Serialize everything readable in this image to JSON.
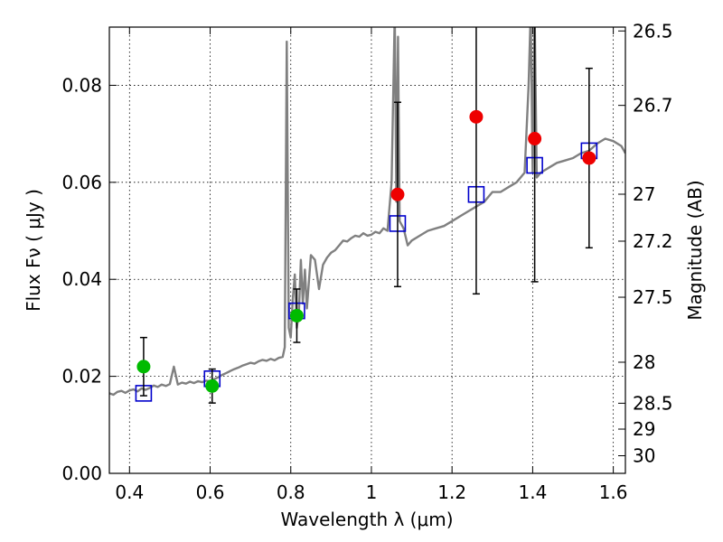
{
  "chart_data": {
    "type": "scatter",
    "xlabel": "Wavelength  λ (μm)",
    "ylabel": "Flux  Fν  ( μJy )",
    "ylabel_right": "Magnitude (AB)",
    "xlim": [
      0.35,
      1.63
    ],
    "ylim": [
      0.0,
      0.092
    ],
    "grid": true,
    "x_ticks": [
      {
        "value": 0.4,
        "label": "0.4"
      },
      {
        "value": 0.6,
        "label": "0.6"
      },
      {
        "value": 0.8,
        "label": "0.8"
      },
      {
        "value": 1.0,
        "label": "1"
      },
      {
        "value": 1.2,
        "label": "1.2"
      },
      {
        "value": 1.4,
        "label": "1.4"
      },
      {
        "value": 1.6,
        "label": "1.6"
      }
    ],
    "y_ticks": [
      {
        "value": 0.0,
        "label": "0.00"
      },
      {
        "value": 0.02,
        "label": "0.02"
      },
      {
        "value": 0.04,
        "label": "0.04"
      },
      {
        "value": 0.06,
        "label": "0.06"
      },
      {
        "value": 0.08,
        "label": "0.08"
      }
    ],
    "mag_ticks": [
      {
        "mag": 26.5,
        "label": "26.5"
      },
      {
        "mag": 26.7,
        "label": "26.7"
      },
      {
        "mag": 27.0,
        "label": "27"
      },
      {
        "mag": 27.2,
        "label": "27.2"
      },
      {
        "mag": 27.5,
        "label": "27.5"
      },
      {
        "mag": 28.0,
        "label": "28"
      },
      {
        "mag": 28.5,
        "label": "28.5"
      },
      {
        "mag": 29.0,
        "label": "29"
      },
      {
        "mag": 30.0,
        "label": "30"
      }
    ],
    "series": [
      {
        "kind": "line",
        "color": "#808080",
        "x": [
          0.35,
          0.36,
          0.37,
          0.38,
          0.39,
          0.4,
          0.41,
          0.42,
          0.43,
          0.44,
          0.45,
          0.46,
          0.47,
          0.48,
          0.49,
          0.5,
          0.51,
          0.52,
          0.53,
          0.54,
          0.55,
          0.56,
          0.57,
          0.58,
          0.59,
          0.6,
          0.61,
          0.62,
          0.63,
          0.64,
          0.65,
          0.66,
          0.67,
          0.68,
          0.69,
          0.7,
          0.71,
          0.72,
          0.73,
          0.74,
          0.75,
          0.76,
          0.77,
          0.78,
          0.785,
          0.79,
          0.795,
          0.8,
          0.805,
          0.81,
          0.815,
          0.82,
          0.825,
          0.83,
          0.835,
          0.84,
          0.85,
          0.86,
          0.87,
          0.88,
          0.89,
          0.9,
          0.91,
          0.92,
          0.93,
          0.94,
          0.95,
          0.96,
          0.97,
          0.98,
          0.99,
          1.0,
          1.01,
          1.02,
          1.03,
          1.04,
          1.05,
          1.058,
          1.062,
          1.066,
          1.07,
          1.08,
          1.09,
          1.1,
          1.12,
          1.14,
          1.16,
          1.18,
          1.2,
          1.22,
          1.24,
          1.26,
          1.28,
          1.3,
          1.32,
          1.34,
          1.36,
          1.38,
          1.39,
          1.395,
          1.4,
          1.405,
          1.41,
          1.42,
          1.44,
          1.46,
          1.48,
          1.5,
          1.52,
          1.54,
          1.56,
          1.58,
          1.6,
          1.62,
          1.63
        ],
        "y": [
          0.0165,
          0.0162,
          0.0168,
          0.017,
          0.0166,
          0.0171,
          0.0173,
          0.0169,
          0.0175,
          0.0172,
          0.0176,
          0.0181,
          0.0178,
          0.0183,
          0.018,
          0.0184,
          0.022,
          0.0183,
          0.0187,
          0.0185,
          0.0189,
          0.0186,
          0.019,
          0.0188,
          0.0191,
          0.019,
          0.0194,
          0.0198,
          0.0203,
          0.0207,
          0.0211,
          0.0215,
          0.0218,
          0.0222,
          0.0225,
          0.0228,
          0.0226,
          0.0231,
          0.0234,
          0.0232,
          0.0236,
          0.0233,
          0.0238,
          0.024,
          0.026,
          0.089,
          0.03,
          0.028,
          0.036,
          0.041,
          0.03,
          0.033,
          0.044,
          0.035,
          0.042,
          0.034,
          0.045,
          0.044,
          0.038,
          0.043,
          0.0445,
          0.0455,
          0.046,
          0.047,
          0.048,
          0.0478,
          0.0485,
          0.049,
          0.0488,
          0.0495,
          0.049,
          0.0492,
          0.0498,
          0.0495,
          0.0505,
          0.05,
          0.06,
          0.095,
          0.056,
          0.09,
          0.052,
          0.0505,
          0.047,
          0.048,
          0.049,
          0.05,
          0.0505,
          0.051,
          0.052,
          0.053,
          0.054,
          0.055,
          0.056,
          0.058,
          0.058,
          0.059,
          0.06,
          0.062,
          0.08,
          0.095,
          0.062,
          0.095,
          0.061,
          0.062,
          0.063,
          0.064,
          0.0645,
          0.065,
          0.066,
          0.0665,
          0.068,
          0.069,
          0.0685,
          0.0675,
          0.066
        ]
      },
      {
        "kind": "points",
        "marker": "square",
        "color": "#0000cc",
        "x": [
          0.435,
          0.605,
          0.815,
          1.065,
          1.26,
          1.405,
          1.54
        ],
        "y": [
          0.0165,
          0.0195,
          0.0335,
          0.0515,
          0.0575,
          0.0635,
          0.0665
        ]
      },
      {
        "kind": "points",
        "marker": "circle",
        "color": "#00bb00",
        "x": [
          0.435,
          0.605,
          0.815
        ],
        "y": [
          0.022,
          0.018,
          0.0325
        ],
        "yerr": [
          0.006,
          0.0035,
          0.0055
        ]
      },
      {
        "kind": "points",
        "marker": "circle",
        "color": "#ee0000",
        "x": [
          1.065,
          1.26,
          1.405,
          1.54
        ],
        "y": [
          0.0575,
          0.0735,
          0.069,
          0.065
        ],
        "yerr": [
          0.019,
          0.0365,
          0.0295,
          0.0185
        ]
      }
    ]
  }
}
